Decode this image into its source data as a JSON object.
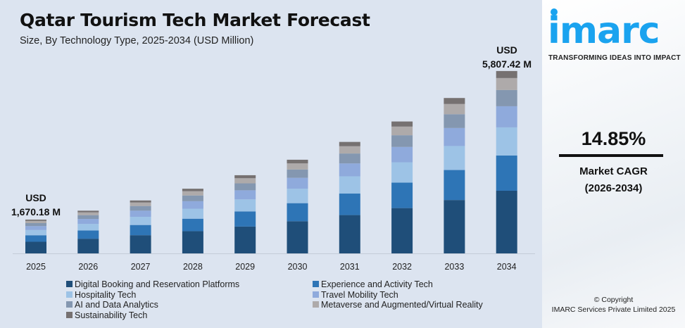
{
  "chart_data": {
    "type": "bar",
    "stacked": true,
    "title": "Qatar Tourism Tech Market Forecast",
    "subtitle": "Size, By Technology Type, 2025-2034 (USD Million)",
    "categories": [
      "2025",
      "2026",
      "2027",
      "2028",
      "2029",
      "2030",
      "2031",
      "2032",
      "2033",
      "2034"
    ],
    "totals": [
      1670.18,
      1918,
      2203,
      2530,
      2906,
      3337,
      3833,
      4402,
      5056,
      5807.42
    ],
    "series": [
      {
        "name": "Digital Booking and Reservation Platforms",
        "color": "#1f4e79",
        "values": [
          574,
          659,
          757,
          869,
          998,
          1146,
          1317,
          1512,
          1737,
          1995
        ]
      },
      {
        "name": "Experience and Activity Tech",
        "color": "#2e75b6",
        "values": [
          322,
          370,
          425,
          488,
          561,
          644,
          740,
          850,
          976,
          1121
        ]
      },
      {
        "name": "Hospitality Tech",
        "color": "#9dc3e6",
        "values": [
          258,
          296,
          340,
          391,
          449,
          516,
          592,
          680,
          781,
          897
        ]
      },
      {
        "name": "Travel Mobility Tech",
        "color": "#8faadc",
        "values": [
          194,
          222,
          255,
          293,
          337,
          387,
          444,
          510,
          586,
          673
        ]
      },
      {
        "name": "AI and Data Analytics",
        "color": "#8497b0",
        "values": [
          148,
          171,
          196,
          225,
          258,
          297,
          341,
          391,
          449,
          516
        ]
      },
      {
        "name": "Metaverse and Augmented/Virtual Reality",
        "color": "#aeaaaa",
        "values": [
          110,
          126,
          145,
          166,
          191,
          219,
          251,
          289,
          332,
          381
        ]
      },
      {
        "name": "Sustainability Tech",
        "color": "#767171",
        "values": [
          64,
          74,
          85,
          98,
          112,
          129,
          148,
          170,
          195,
          224
        ]
      }
    ],
    "annotations": {
      "first": {
        "line1": "USD",
        "line2": "1,670.18 M"
      },
      "last": {
        "line1": "USD",
        "line2": "5,807.42 M"
      }
    },
    "grid": false,
    "legend_position": "bottom"
  },
  "side": {
    "logo_text": "imarc",
    "tagline": "TRANSFORMING IDEAS INTO IMPACT",
    "cagr": "14.85%",
    "cagr_label": "Market CAGR",
    "cagr_period": "(2026-2034)",
    "copyright": "© Copyright",
    "company": "IMARC Services Private Limited 2025",
    "brand_color": "#1aa3ef"
  }
}
